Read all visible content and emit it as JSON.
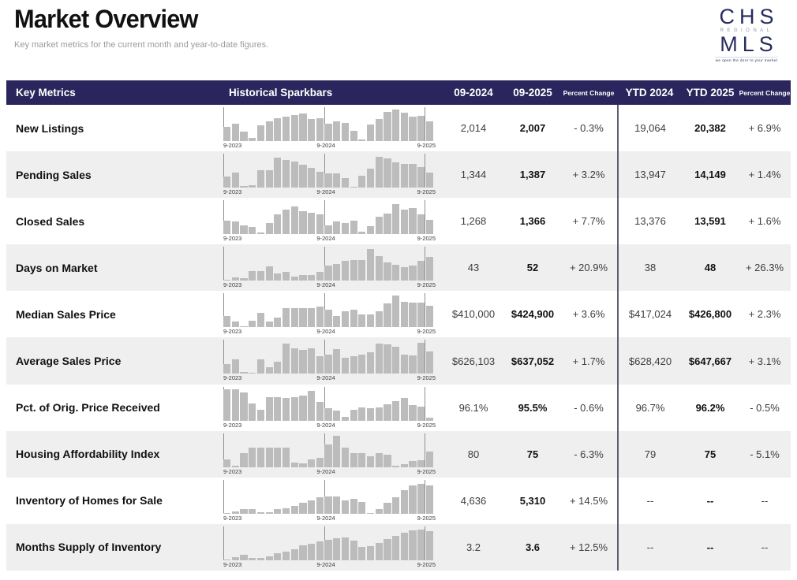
{
  "page": {
    "title": "Market Overview",
    "subtitle": "Key market metrics for the current month and year-to-date figures."
  },
  "logo": {
    "top": "CHS",
    "middle": "REGIONAL",
    "bottom": "MLS",
    "tagline": "we open the door to your market"
  },
  "colors": {
    "header_bg": "#2a255c",
    "row_alt_bg": "#efefef",
    "bar": "#bcbcbc",
    "divider": "#615c72",
    "logo_navy": "#262c5e"
  },
  "table": {
    "columns": {
      "metric": "Key Metrics",
      "spark": "Historical Sparkbars",
      "m1": "09-2024",
      "m2": "09-2025",
      "pct": "Percent Change",
      "y1": "YTD 2024",
      "y2": "YTD 2025",
      "ypct": "Percent Change"
    },
    "spark_axis": [
      "9-2023",
      "9-2024",
      "9-2025"
    ],
    "rows": [
      {
        "metric": "New Listings",
        "m1": "2,014",
        "m2": "2,007",
        "pct": "- 0.3%",
        "y1": "19,064",
        "y2": "20,382",
        "ypct": "+ 6.9%",
        "spark": [
          45,
          55,
          30,
          10,
          50,
          62,
          72,
          78,
          82,
          88,
          70,
          72,
          55,
          62,
          58,
          32,
          4,
          52,
          70,
          92,
          100,
          90,
          78,
          80,
          62
        ]
      },
      {
        "metric": "Pending Sales",
        "m1": "1,344",
        "m2": "1,387",
        "pct": "+ 3.2%",
        "y1": "13,947",
        "y2": "14,149",
        "ypct": "+ 1.4%",
        "spark": [
          35,
          48,
          6,
          8,
          55,
          55,
          95,
          88,
          82,
          72,
          62,
          50,
          45,
          45,
          30,
          4,
          38,
          60,
          97,
          93,
          80,
          76,
          76,
          65,
          48
        ]
      },
      {
        "metric": "Closed Sales",
        "m1": "1,268",
        "m2": "1,366",
        "pct": "+ 7.7%",
        "y1": "13,376",
        "y2": "13,591",
        "ypct": "+ 1.6%",
        "spark": [
          42,
          40,
          28,
          22,
          5,
          35,
          62,
          78,
          88,
          72,
          68,
          62,
          28,
          40,
          35,
          42,
          8,
          25,
          55,
          65,
          95,
          78,
          82,
          62,
          45
        ]
      },
      {
        "metric": "Days on Market",
        "m1": "43",
        "m2": "52",
        "pct": "+ 20.9%",
        "y1": "38",
        "y2": "48",
        "ypct": "+ 26.3%",
        "spark": [
          4,
          10,
          7,
          30,
          30,
          45,
          22,
          27,
          13,
          17,
          18,
          28,
          48,
          52,
          62,
          65,
          65,
          100,
          78,
          58,
          50,
          42,
          48,
          62,
          75
        ]
      },
      {
        "metric": "Median Sales Price",
        "m1": "$410,000",
        "m2": "$424,900",
        "pct": "+ 3.6%",
        "y1": "$417,024",
        "y2": "$426,800",
        "ypct": "+ 2.3%",
        "spark": [
          35,
          18,
          4,
          22,
          45,
          18,
          32,
          60,
          62,
          62,
          62,
          65,
          55,
          35,
          50,
          55,
          42,
          40,
          50,
          75,
          100,
          80,
          78,
          78,
          68
        ]
      },
      {
        "metric": "Average Sales Price",
        "m1": "$626,103",
        "m2": "$637,052",
        "pct": "+ 1.7%",
        "y1": "$628,420",
        "y2": "$647,667",
        "ypct": "+ 3.1%",
        "spark": [
          30,
          45,
          6,
          3,
          45,
          22,
          38,
          95,
          82,
          75,
          82,
          55,
          62,
          78,
          52,
          55,
          62,
          68,
          95,
          93,
          85,
          62,
          58,
          98,
          72
        ]
      },
      {
        "metric": "Pct. of Orig. Price Received",
        "m1": "96.1%",
        "m2": "95.5%",
        "pct": "- 0.6%",
        "y1": "96.7%",
        "y2": "96.2%",
        "ypct": "- 0.5%",
        "spark": [
          100,
          98,
          90,
          55,
          35,
          75,
          75,
          72,
          75,
          78,
          95,
          58,
          38,
          32,
          12,
          35,
          42,
          38,
          42,
          52,
          62,
          72,
          48,
          45,
          10
        ]
      },
      {
        "metric": "Housing Affordability Index",
        "m1": "80",
        "m2": "75",
        "pct": "- 6.3%",
        "y1": "79",
        "y2": "75",
        "ypct": "- 5.1%",
        "spark": [
          25,
          3,
          45,
          62,
          62,
          62,
          62,
          62,
          15,
          12,
          25,
          28,
          72,
          100,
          62,
          45,
          45,
          35,
          45,
          38,
          3,
          10,
          20,
          22,
          50
        ]
      },
      {
        "metric": "Inventory of Homes for Sale",
        "m1": "4,636",
        "m2": "5,310",
        "pct": "+ 14.5%",
        "y1": "--",
        "y2": "--",
        "ypct": "--",
        "spark": [
          2,
          8,
          15,
          15,
          5,
          5,
          15,
          18,
          25,
          35,
          42,
          52,
          55,
          55,
          42,
          48,
          38,
          2,
          15,
          35,
          52,
          75,
          90,
          95,
          90
        ]
      },
      {
        "metric": "Months Supply of Inventory",
        "m1": "3.2",
        "m2": "3.6",
        "pct": "+ 12.5%",
        "y1": "--",
        "y2": "--",
        "ypct": "--",
        "spark": [
          3,
          10,
          18,
          8,
          7,
          12,
          22,
          28,
          35,
          48,
          52,
          60,
          65,
          70,
          72,
          62,
          42,
          45,
          55,
          68,
          78,
          88,
          95,
          97,
          92
        ]
      }
    ]
  }
}
